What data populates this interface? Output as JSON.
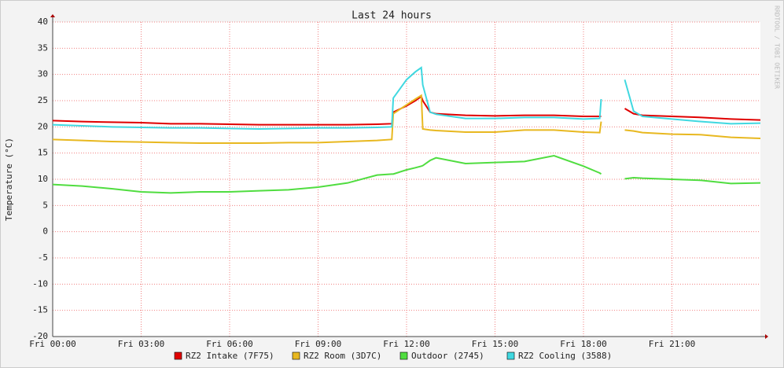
{
  "chart_data": {
    "type": "line",
    "title": "Last 24 hours",
    "y_label": "Temperature (°C)",
    "watermark": "RRDTOOL / TOBI OETIKER",
    "x": [
      0,
      1,
      2,
      3,
      4,
      5,
      6,
      7,
      8,
      9,
      10,
      11,
      11.5,
      11.55,
      12,
      12.3,
      12.5,
      12.55,
      12.8,
      13,
      14,
      15,
      16,
      17,
      18,
      18.55,
      18.6,
      19,
      19.4,
      19.7,
      20,
      21,
      22,
      23,
      24
    ],
    "xlim": [
      0,
      24
    ],
    "xticks": [
      {
        "value": 0,
        "label": "Fri 00:00"
      },
      {
        "value": 3,
        "label": "Fri 03:00"
      },
      {
        "value": 6,
        "label": "Fri 06:00"
      },
      {
        "value": 9,
        "label": "Fri 09:00"
      },
      {
        "value": 12,
        "label": "Fri 12:00"
      },
      {
        "value": 15,
        "label": "Fri 15:00"
      },
      {
        "value": 18,
        "label": "Fri 18:00"
      },
      {
        "value": 21,
        "label": "Fri 21:00"
      }
    ],
    "ylim": [
      -20,
      40
    ],
    "yticks": [
      -20,
      -15,
      -10,
      -5,
      0,
      5,
      10,
      15,
      20,
      25,
      30,
      35,
      40
    ],
    "grid": true,
    "series": [
      {
        "name": "RZ2 Intake (7F75)",
        "color": "#e00000",
        "values": [
          21.2,
          21.0,
          20.9,
          20.8,
          20.6,
          20.6,
          20.5,
          20.4,
          20.4,
          20.4,
          20.4,
          20.5,
          20.6,
          22.8,
          24,
          25,
          25.8,
          25,
          22.8,
          22.5,
          22.2,
          22.1,
          22.2,
          22.2,
          22.0,
          22.0,
          22.0,
          null,
          23.5,
          22.5,
          22.2,
          22.0,
          21.8,
          21.5,
          21.3
        ]
      },
      {
        "name": "RZ2 Room (3D7C)",
        "color": "#e8b820",
        "values": [
          17.6,
          17.4,
          17.2,
          17.1,
          17.0,
          16.9,
          16.9,
          16.9,
          17.0,
          17.0,
          17.2,
          17.4,
          17.6,
          22.5,
          24.2,
          25.3,
          26,
          19.6,
          19.4,
          19.3,
          19.0,
          19.0,
          19.4,
          19.4,
          19.0,
          18.9,
          21.0,
          null,
          19.4,
          19.2,
          18.9,
          18.6,
          18.5,
          18.0,
          17.8
        ]
      },
      {
        "name": "Outdoor (2745)",
        "color": "#50dd40",
        "values": [
          9.0,
          8.7,
          8.2,
          7.6,
          7.4,
          7.6,
          7.6,
          7.8,
          8.0,
          8.5,
          9.3,
          10.8,
          11,
          11,
          11.8,
          12.2,
          12.5,
          12.6,
          13.6,
          14.1,
          13.0,
          13.2,
          13.4,
          14.5,
          12.5,
          11.2,
          11.0,
          null,
          10.1,
          10.3,
          10.2,
          10.0,
          9.8,
          9.2,
          9.3
        ]
      },
      {
        "name": "RZ2 Cooling (3588)",
        "color": "#40d8e0",
        "values": [
          20.4,
          20.2,
          20.0,
          19.9,
          19.8,
          19.8,
          19.7,
          19.6,
          19.7,
          19.8,
          19.8,
          19.9,
          20.0,
          25.5,
          29,
          30.5,
          31.3,
          28,
          22.8,
          22.4,
          21.6,
          21.6,
          21.8,
          21.8,
          21.5,
          21.6,
          25.3,
          null,
          29,
          23,
          22,
          21.5,
          21.0,
          20.6,
          20.7
        ]
      }
    ]
  }
}
